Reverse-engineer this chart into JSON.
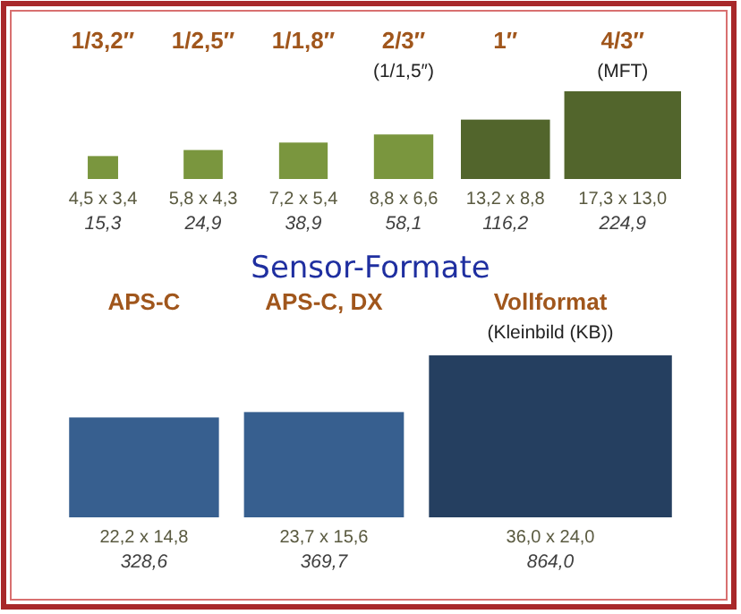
{
  "chart_data": [
    {
      "type": "other",
      "categories": [
        "1/3,2″",
        "1/2,5″",
        "1/1,8″",
        "2/3″\n(1/1,5″)",
        "1″",
        "4/3″\n(MFT)"
      ],
      "values": [
        15.3,
        24.9,
        38.9,
        58.1,
        116.2,
        224.9
      ],
      "value_labels": [
        "15,3",
        "24,9",
        "38,9",
        "58,1",
        "116,2",
        "224,9"
      ],
      "colors": [
        "#7a963e",
        "#7a963e",
        "#7a963e",
        "#7a963e",
        "#52652c",
        "#52652c"
      ],
      "annotations": [
        {
          "text": "4,5 x 3,4",
          "x": "1/3,2″"
        },
        {
          "text": "5,8 x 4,3",
          "x": "1/2,5″"
        },
        {
          "text": "7,2 x 5,4",
          "x": "1/1,8″"
        },
        {
          "text": "8,8 x 6,6",
          "x": "2/3″\n(1/1,5″)"
        },
        {
          "text": "13,2 x 8,8",
          "x": "1″"
        },
        {
          "text": "17,3 x 13,0",
          "x": "4/3″\n(MFT)"
        }
      ]
    },
    {
      "type": "other",
      "title": "Sensor-Formate",
      "categories": [
        "APS-C",
        "APS-C, DX",
        "Vollformat\n(Kleinbild (KB))"
      ],
      "values": [
        328.6,
        369.7,
        864.0
      ],
      "value_labels": [
        "328,6",
        "369,7",
        "864,0"
      ],
      "colors": [
        "#375f8f",
        "#375f8f",
        "#253f60"
      ],
      "annotations": [
        {
          "text": "22,2 x 14,8",
          "x": "APS-C"
        },
        {
          "text": "23,7 x 15,6",
          "x": "APS-C, DX"
        },
        {
          "text": "36,0 x 24,0",
          "x": "Vollformat\n(Kleinbild (KB))"
        }
      ]
    }
  ]
}
